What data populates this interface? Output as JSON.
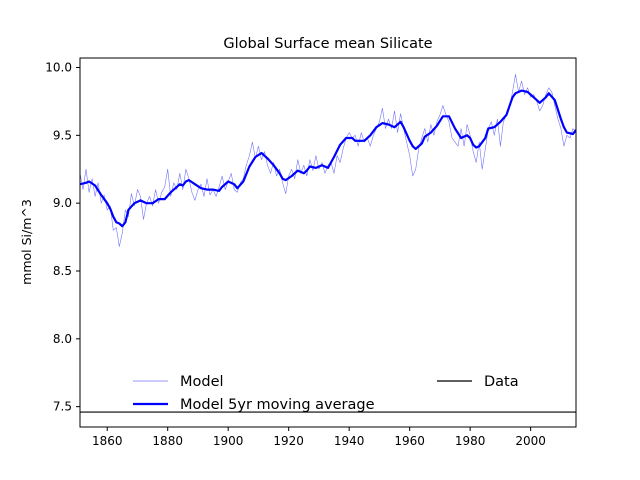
{
  "chart_data": {
    "type": "line",
    "title": "Global Surface mean Silicate",
    "xlabel": "",
    "ylabel": "mmol Si/m^3",
    "xlim": [
      1851,
      2015
    ],
    "ylim": [
      7.35,
      10.07
    ],
    "xticks": [
      1860,
      1880,
      1900,
      1920,
      1940,
      1960,
      1980,
      2000
    ],
    "yticks": [
      "7.5",
      "8.0",
      "8.5",
      "9.0",
      "9.5",
      "10.0"
    ],
    "grid": false,
    "legend_placement": "lower center, two columns",
    "series": [
      {
        "name": "Model",
        "color": "#0000ff",
        "style": "thin",
        "points": [
          [
            1851,
            9.22
          ],
          [
            1852,
            9.1
          ],
          [
            1853,
            9.25
          ],
          [
            1854,
            9.08
          ],
          [
            1855,
            9.18
          ],
          [
            1856,
            9.05
          ],
          [
            1857,
            9.15
          ],
          [
            1858,
            9.0
          ],
          [
            1859,
            9.06
          ],
          [
            1860,
            8.95
          ],
          [
            1861,
            8.98
          ],
          [
            1862,
            8.8
          ],
          [
            1863,
            8.82
          ],
          [
            1864,
            8.68
          ],
          [
            1865,
            8.78
          ],
          [
            1866,
            8.95
          ],
          [
            1867,
            8.9
          ],
          [
            1868,
            9.07
          ],
          [
            1869,
            8.98
          ],
          [
            1870,
            9.1
          ],
          [
            1871,
            9.05
          ],
          [
            1872,
            8.88
          ],
          [
            1873,
            9.0
          ],
          [
            1874,
            9.05
          ],
          [
            1875,
            8.98
          ],
          [
            1876,
            9.1
          ],
          [
            1877,
            9.0
          ],
          [
            1878,
            9.08
          ],
          [
            1879,
            9.12
          ],
          [
            1880,
            9.25
          ],
          [
            1881,
            9.05
          ],
          [
            1882,
            9.15
          ],
          [
            1883,
            9.1
          ],
          [
            1884,
            9.22
          ],
          [
            1885,
            9.1
          ],
          [
            1886,
            9.25
          ],
          [
            1887,
            9.18
          ],
          [
            1888,
            9.08
          ],
          [
            1889,
            9.02
          ],
          [
            1890,
            9.1
          ],
          [
            1891,
            9.14
          ],
          [
            1892,
            9.05
          ],
          [
            1893,
            9.18
          ],
          [
            1894,
            9.06
          ],
          [
            1895,
            9.1
          ],
          [
            1896,
            9.05
          ],
          [
            1897,
            9.12
          ],
          [
            1898,
            9.2
          ],
          [
            1899,
            9.1
          ],
          [
            1900,
            9.16
          ],
          [
            1901,
            9.22
          ],
          [
            1902,
            9.1
          ],
          [
            1903,
            9.08
          ],
          [
            1904,
            9.15
          ],
          [
            1905,
            9.18
          ],
          [
            1906,
            9.28
          ],
          [
            1907,
            9.35
          ],
          [
            1908,
            9.45
          ],
          [
            1909,
            9.33
          ],
          [
            1910,
            9.42
          ],
          [
            1911,
            9.32
          ],
          [
            1912,
            9.38
          ],
          [
            1913,
            9.28
          ],
          [
            1914,
            9.22
          ],
          [
            1915,
            9.3
          ],
          [
            1916,
            9.2
          ],
          [
            1917,
            9.25
          ],
          [
            1918,
            9.15
          ],
          [
            1919,
            9.07
          ],
          [
            1920,
            9.2
          ],
          [
            1921,
            9.25
          ],
          [
            1922,
            9.18
          ],
          [
            1923,
            9.32
          ],
          [
            1924,
            9.22
          ],
          [
            1925,
            9.28
          ],
          [
            1926,
            9.2
          ],
          [
            1927,
            9.32
          ],
          [
            1928,
            9.24
          ],
          [
            1929,
            9.35
          ],
          [
            1930,
            9.25
          ],
          [
            1931,
            9.3
          ],
          [
            1932,
            9.22
          ],
          [
            1933,
            9.28
          ],
          [
            1934,
            9.3
          ],
          [
            1935,
            9.22
          ],
          [
            1936,
            9.35
          ],
          [
            1937,
            9.3
          ],
          [
            1938,
            9.4
          ],
          [
            1939,
            9.48
          ],
          [
            1940,
            9.52
          ],
          [
            1941,
            9.48
          ],
          [
            1942,
            9.5
          ],
          [
            1943,
            9.42
          ],
          [
            1944,
            9.52
          ],
          [
            1945,
            9.45
          ],
          [
            1946,
            9.48
          ],
          [
            1947,
            9.42
          ],
          [
            1948,
            9.5
          ],
          [
            1949,
            9.55
          ],
          [
            1950,
            9.6
          ],
          [
            1951,
            9.7
          ],
          [
            1952,
            9.55
          ],
          [
            1953,
            9.62
          ],
          [
            1954,
            9.55
          ],
          [
            1955,
            9.68
          ],
          [
            1956,
            9.52
          ],
          [
            1957,
            9.66
          ],
          [
            1958,
            9.55
          ],
          [
            1959,
            9.45
          ],
          [
            1960,
            9.35
          ],
          [
            1961,
            9.2
          ],
          [
            1962,
            9.25
          ],
          [
            1963,
            9.4
          ],
          [
            1964,
            9.48
          ],
          [
            1965,
            9.55
          ],
          [
            1966,
            9.45
          ],
          [
            1967,
            9.58
          ],
          [
            1968,
            9.5
          ],
          [
            1969,
            9.6
          ],
          [
            1970,
            9.65
          ],
          [
            1971,
            9.72
          ],
          [
            1972,
            9.65
          ],
          [
            1973,
            9.6
          ],
          [
            1974,
            9.48
          ],
          [
            1975,
            9.45
          ],
          [
            1976,
            9.42
          ],
          [
            1977,
            9.55
          ],
          [
            1978,
            9.42
          ],
          [
            1979,
            9.58
          ],
          [
            1980,
            9.5
          ],
          [
            1981,
            9.38
          ],
          [
            1982,
            9.3
          ],
          [
            1983,
            9.45
          ],
          [
            1984,
            9.25
          ],
          [
            1985,
            9.4
          ],
          [
            1986,
            9.55
          ],
          [
            1987,
            9.6
          ],
          [
            1988,
            9.5
          ],
          [
            1989,
            9.62
          ],
          [
            1990,
            9.42
          ],
          [
            1991,
            9.6
          ],
          [
            1992,
            9.65
          ],
          [
            1993,
            9.7
          ],
          [
            1994,
            9.82
          ],
          [
            1995,
            9.95
          ],
          [
            1996,
            9.82
          ],
          [
            1997,
            9.9
          ],
          [
            1998,
            9.8
          ],
          [
            1999,
            9.85
          ],
          [
            2000,
            9.78
          ],
          [
            2001,
            9.8
          ],
          [
            2002,
            9.75
          ],
          [
            2003,
            9.68
          ],
          [
            2004,
            9.72
          ],
          [
            2005,
            9.8
          ],
          [
            2006,
            9.85
          ],
          [
            2007,
            9.82
          ],
          [
            2008,
            9.72
          ],
          [
            2009,
            9.62
          ],
          [
            2010,
            9.55
          ],
          [
            2011,
            9.42
          ],
          [
            2012,
            9.5
          ],
          [
            2013,
            9.48
          ],
          [
            2014,
            9.55
          ],
          [
            2015,
            9.52
          ]
        ]
      },
      {
        "name": "Model 5yr moving average",
        "color": "#0000ff",
        "style": "thick",
        "points": [
          [
            1851,
            9.14
          ],
          [
            1853,
            9.15
          ],
          [
            1854,
            9.16
          ],
          [
            1856,
            9.13
          ],
          [
            1858,
            9.06
          ],
          [
            1860,
            9.0
          ],
          [
            1861,
            8.96
          ],
          [
            1862,
            8.9
          ],
          [
            1863,
            8.86
          ],
          [
            1864,
            8.85
          ],
          [
            1865,
            8.83
          ],
          [
            1866,
            8.86
          ],
          [
            1867,
            8.95
          ],
          [
            1869,
            9.0
          ],
          [
            1871,
            9.02
          ],
          [
            1873,
            9.0
          ],
          [
            1875,
            9.0
          ],
          [
            1877,
            9.03
          ],
          [
            1879,
            9.03
          ],
          [
            1881,
            9.08
          ],
          [
            1883,
            9.12
          ],
          [
            1884,
            9.14
          ],
          [
            1885,
            9.13
          ],
          [
            1886,
            9.16
          ],
          [
            1887,
            9.17
          ],
          [
            1889,
            9.14
          ],
          [
            1891,
            9.11
          ],
          [
            1893,
            9.1
          ],
          [
            1895,
            9.1
          ],
          [
            1897,
            9.09
          ],
          [
            1898,
            9.12
          ],
          [
            1900,
            9.16
          ],
          [
            1902,
            9.14
          ],
          [
            1903,
            9.11
          ],
          [
            1905,
            9.16
          ],
          [
            1907,
            9.27
          ],
          [
            1909,
            9.34
          ],
          [
            1911,
            9.37
          ],
          [
            1913,
            9.33
          ],
          [
            1915,
            9.28
          ],
          [
            1917,
            9.22
          ],
          [
            1918,
            9.18
          ],
          [
            1919,
            9.17
          ],
          [
            1921,
            9.2
          ],
          [
            1923,
            9.24
          ],
          [
            1925,
            9.22
          ],
          [
            1926,
            9.24
          ],
          [
            1927,
            9.27
          ],
          [
            1929,
            9.26
          ],
          [
            1931,
            9.28
          ],
          [
            1933,
            9.26
          ],
          [
            1935,
            9.34
          ],
          [
            1937,
            9.43
          ],
          [
            1939,
            9.48
          ],
          [
            1941,
            9.48
          ],
          [
            1942,
            9.46
          ],
          [
            1943,
            9.46
          ],
          [
            1945,
            9.46
          ],
          [
            1947,
            9.5
          ],
          [
            1949,
            9.56
          ],
          [
            1951,
            9.59
          ],
          [
            1953,
            9.58
          ],
          [
            1955,
            9.56
          ],
          [
            1957,
            9.6
          ],
          [
            1958,
            9.56
          ],
          [
            1960,
            9.46
          ],
          [
            1961,
            9.42
          ],
          [
            1962,
            9.4
          ],
          [
            1964,
            9.44
          ],
          [
            1965,
            9.49
          ],
          [
            1967,
            9.52
          ],
          [
            1969,
            9.57
          ],
          [
            1971,
            9.64
          ],
          [
            1973,
            9.64
          ],
          [
            1975,
            9.55
          ],
          [
            1977,
            9.48
          ],
          [
            1979,
            9.5
          ],
          [
            1980,
            9.48
          ],
          [
            1981,
            9.43
          ],
          [
            1982,
            9.41
          ],
          [
            1983,
            9.42
          ],
          [
            1985,
            9.48
          ],
          [
            1986,
            9.55
          ],
          [
            1988,
            9.56
          ],
          [
            1990,
            9.6
          ],
          [
            1992,
            9.65
          ],
          [
            1994,
            9.78
          ],
          [
            1995,
            9.81
          ],
          [
            1997,
            9.83
          ],
          [
            1999,
            9.82
          ],
          [
            2001,
            9.78
          ],
          [
            2003,
            9.74
          ],
          [
            2005,
            9.78
          ],
          [
            2006,
            9.81
          ],
          [
            2008,
            9.76
          ],
          [
            2010,
            9.62
          ],
          [
            2011,
            9.56
          ],
          [
            2012,
            9.52
          ],
          [
            2014,
            9.51
          ],
          [
            2015,
            9.54
          ]
        ]
      },
      {
        "name": "Data",
        "color": "#000000",
        "style": "hline",
        "value": 7.46
      }
    ]
  }
}
